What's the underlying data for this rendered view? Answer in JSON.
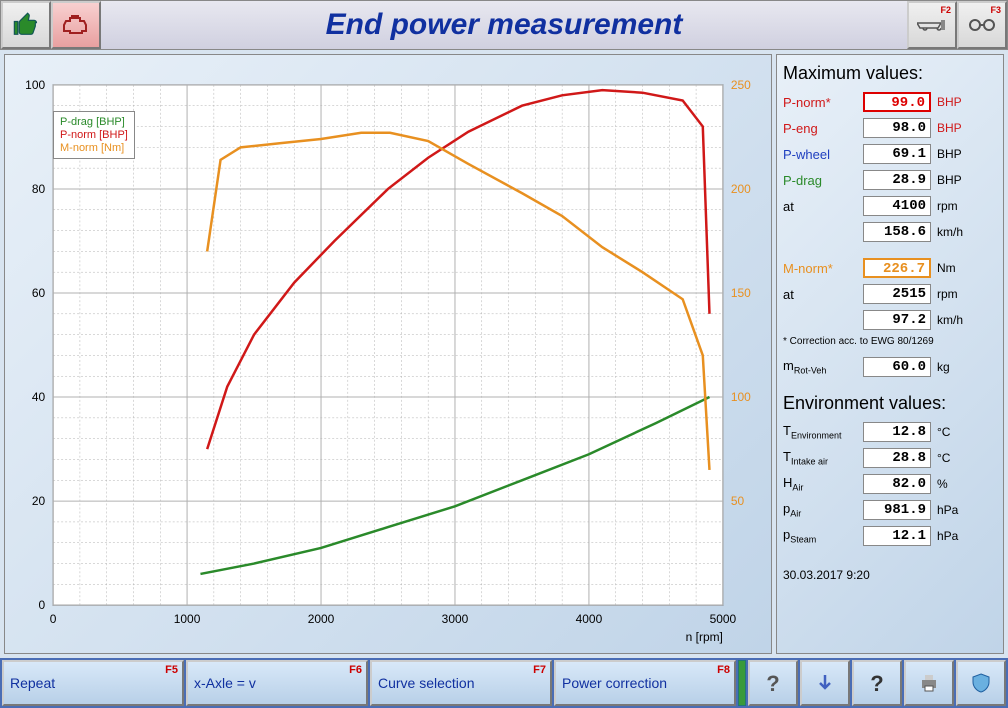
{
  "title": "End power measurement",
  "titlebar_right": [
    {
      "fkey": "F2",
      "icon": "vehicle-icon"
    },
    {
      "fkey": "F3",
      "icon": "wheels-icon"
    }
  ],
  "chart": {
    "type": "line",
    "xlabel": "n [rpm]",
    "xlim": [
      0,
      5000
    ],
    "xtick_step": 1000,
    "left_ylim": [
      0,
      100
    ],
    "left_ytick_step": 20,
    "right_ylim": [
      0,
      250
    ],
    "right_ytick_step": 50,
    "background_color": "#ffffff",
    "grid_color": "#b0b0b0",
    "legend": [
      {
        "label": "P-drag [BHP]",
        "color": "#2a8a2a"
      },
      {
        "label": "P-norm [BHP]",
        "color": "#d01818"
      },
      {
        "label": "M-norm [Nm]",
        "color": "#e89020"
      }
    ],
    "series": {
      "p_drag": {
        "color": "#2a8a2a",
        "line_width": 2.5,
        "axis": "left",
        "points": [
          [
            1100,
            6
          ],
          [
            1500,
            8
          ],
          [
            2000,
            11
          ],
          [
            2500,
            15
          ],
          [
            3000,
            19
          ],
          [
            3500,
            24
          ],
          [
            4000,
            29
          ],
          [
            4500,
            35
          ],
          [
            4900,
            40
          ]
        ]
      },
      "p_norm": {
        "color": "#d01818",
        "line_width": 2.5,
        "axis": "left",
        "points": [
          [
            1150,
            30
          ],
          [
            1300,
            42
          ],
          [
            1500,
            52
          ],
          [
            1800,
            62
          ],
          [
            2100,
            70
          ],
          [
            2500,
            80
          ],
          [
            2800,
            86
          ],
          [
            3100,
            91
          ],
          [
            3500,
            96
          ],
          [
            3800,
            98
          ],
          [
            4100,
            99
          ],
          [
            4400,
            98.5
          ],
          [
            4700,
            97
          ],
          [
            4850,
            92
          ],
          [
            4900,
            56
          ]
        ]
      },
      "m_norm": {
        "color": "#e89020",
        "line_width": 2.5,
        "axis": "right",
        "points": [
          [
            1150,
            170
          ],
          [
            1250,
            214
          ],
          [
            1400,
            220
          ],
          [
            1700,
            222
          ],
          [
            2000,
            224
          ],
          [
            2300,
            227
          ],
          [
            2515,
            227
          ],
          [
            2800,
            223
          ],
          [
            3100,
            212
          ],
          [
            3500,
            198
          ],
          [
            3800,
            187
          ],
          [
            4100,
            172
          ],
          [
            4400,
            160
          ],
          [
            4700,
            147
          ],
          [
            4850,
            120
          ],
          [
            4900,
            65
          ]
        ]
      }
    }
  },
  "max_values": {
    "title": "Maximum values:",
    "rows": [
      {
        "label": "P-norm*",
        "value": "99.0",
        "unit": "BHP",
        "label_color": "#d01818",
        "unit_color": "#d01818",
        "highlight": "red"
      },
      {
        "label": "P-eng",
        "value": "98.0",
        "unit": "BHP",
        "label_color": "#d01818",
        "unit_color": "#d01818"
      },
      {
        "label": "P-wheel",
        "value": "69.1",
        "unit": "BHP",
        "label_color": "#2040c0"
      },
      {
        "label": "P-drag",
        "value": "28.9",
        "unit": "BHP",
        "label_color": "#2a8a2a"
      },
      {
        "label": "at",
        "value": "4100",
        "unit": "rpm"
      },
      {
        "label": "",
        "value": "158.6",
        "unit": "km/h"
      },
      {
        "spacer": true
      },
      {
        "label": "M-norm*",
        "value": "226.7",
        "unit": "Nm",
        "label_color": "#e89020",
        "highlight": "orange"
      },
      {
        "label": "at",
        "value": "2515",
        "unit": "rpm"
      },
      {
        "label": "",
        "value": "97.2",
        "unit": "km/h"
      }
    ],
    "footnote": "* Correction acc. to EWG 80/1269",
    "mrot": {
      "label": "m",
      "sub": "Rot-Veh",
      "value": "60.0",
      "unit": "kg"
    }
  },
  "env_values": {
    "title": "Environment values:",
    "rows": [
      {
        "label": "T",
        "sub": "Environment",
        "value": "12.8",
        "unit": "°C"
      },
      {
        "label": "T",
        "sub": "Intake air",
        "value": "28.8",
        "unit": "°C"
      },
      {
        "label": "H",
        "sub": "Air",
        "value": "82.0",
        "unit": "%"
      },
      {
        "label": "p",
        "sub": "Air",
        "value": "981.9",
        "unit": "hPa"
      },
      {
        "label": "p",
        "sub": "Steam",
        "value": "12.1",
        "unit": "hPa"
      }
    ]
  },
  "timestamp": "30.03.2017  9:20",
  "bottom_buttons": [
    {
      "label": "Repeat",
      "fkey": "F5"
    },
    {
      "label": "x-Axle = v",
      "fkey": "F6"
    },
    {
      "label": "Curve selection",
      "fkey": "F7"
    },
    {
      "label": "Power correction",
      "fkey": "F8"
    }
  ],
  "bottom_icons": [
    "help-icon",
    "arrow-down-icon",
    "question-icon",
    "printer-icon",
    "shield-icon"
  ]
}
